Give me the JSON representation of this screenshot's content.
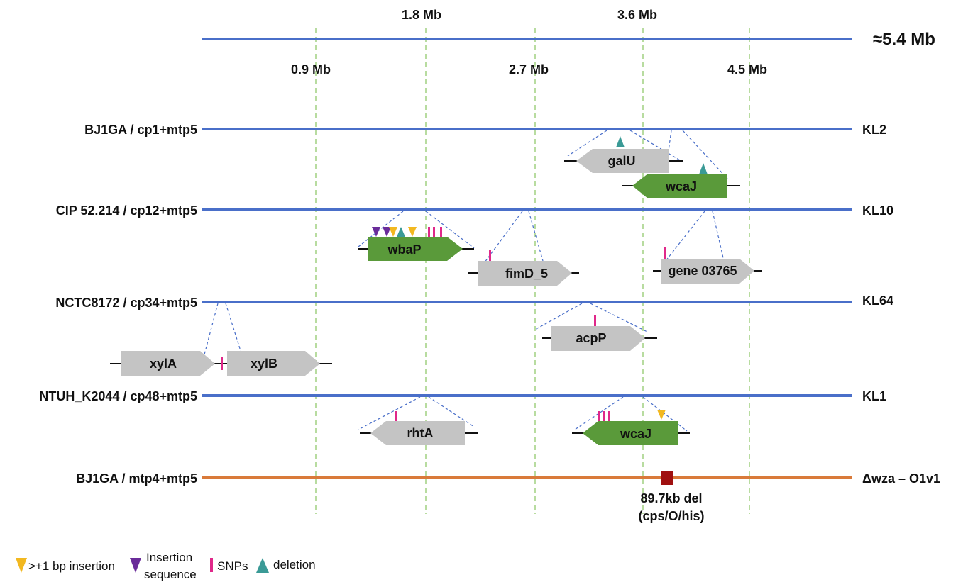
{
  "genome": {
    "size_label": "≈5.4 Mb",
    "ticks_top": [
      "1.8 Mb",
      "3.6 Mb"
    ],
    "ticks_bottom": [
      "0.9 Mb",
      "2.7 Mb",
      "4.5 Mb"
    ]
  },
  "tracks": [
    {
      "name": "BJ1GA / cp1+mtp5",
      "type": "KL2"
    },
    {
      "name": "CIP 52.214 / cp12+mtp5",
      "type": "KL10"
    },
    {
      "name": "NCTC8172 / cp34+mtp5",
      "type": "KL64"
    },
    {
      "name": "NTUH_K2044 / cp48+mtp5",
      "type": "KL1"
    },
    {
      "name": "BJ1GA / mtp4+mtp5",
      "type": "Δwza – O1v1"
    }
  ],
  "genes": {
    "galU": "galU",
    "wcaJ_kl2": "wcaJ",
    "wbaP": "wbaP",
    "fimD": "fimD_5",
    "gene03765": "gene 03765",
    "acpP": "acpP",
    "xylA": "xylA",
    "xylB": "xylB",
    "rhtA": "rhtA",
    "wcaJ_kl1": "wcaJ"
  },
  "deletion": {
    "line1": "89.7kb del",
    "line2": "(cps/O/his)"
  },
  "legend": {
    "insertion": ">+1 bp insertion",
    "is_line1": "Insertion",
    "is_line2": "sequence",
    "snps": "SNPs",
    "deletion": "deletion"
  },
  "colors": {
    "track": "#4a6fc9",
    "track_mutant": "#d97a3a",
    "grid": "#b8dca0",
    "gene_gray": "#c4c4c4",
    "gene_green": "#5a9a3a",
    "snp": "#e0288a",
    "insertion": "#f2b820",
    "insertion_sequence": "#6a2c9a",
    "deletion": "#3a9a96",
    "deletion_box": "#a01010"
  }
}
